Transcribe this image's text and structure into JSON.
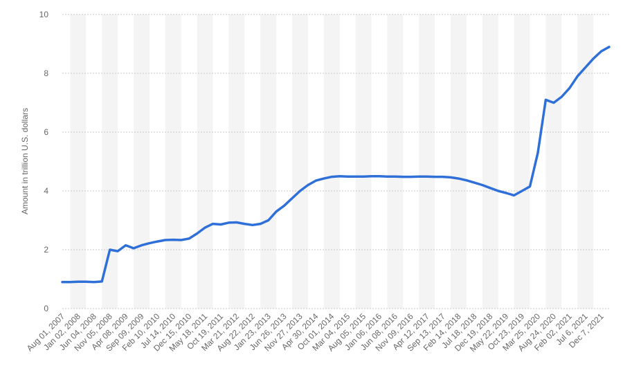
{
  "chart_data": {
    "type": "line",
    "y_axis_label": "Amount in trillion U.S. dollars",
    "categories": [
      "Aug 01, 2007",
      null,
      "Jan 02, 2008",
      null,
      "Jun 04, 2008",
      null,
      "Nov 05, 2008",
      null,
      "Apr 08, 2009",
      null,
      "Sep 09, 2009",
      null,
      "Feb 10, 2010",
      null,
      "Jul 14, 2010",
      null,
      "Dec 15, 2010",
      null,
      "May 18, 2011",
      null,
      "Oct 19, 2011",
      null,
      "Mar 21, 2012",
      null,
      "Aug 22, 2012",
      null,
      "Jan 23, 2013",
      null,
      "Jun 26, 2013",
      null,
      "Nov 27, 2013",
      null,
      "Apr 30, 2014",
      null,
      "Oct 01, 2014",
      null,
      "Mar 04, 2015",
      null,
      "Aug 05, 2015",
      null,
      "Jan 06, 2016",
      null,
      "Jun 08, 2016",
      null,
      "Nov 09, 2016",
      null,
      "Apr 12, 2017",
      null,
      "Sep 13, 2017",
      null,
      "Feb 14, 2018",
      null,
      "Jul 18, 2018",
      null,
      "Dec 19, 2018",
      null,
      "May 22, 2019",
      null,
      "Oct 23, 2019",
      null,
      "Mar 25, 2020",
      null,
      "Aug 24, 2020",
      null,
      "Feb 02, 2021",
      null,
      "Jul 6, 2021",
      null,
      "Dec 7, 2021",
      null
    ],
    "values": [
      0.9,
      0.9,
      0.91,
      0.91,
      0.9,
      0.92,
      2.0,
      1.95,
      2.15,
      2.05,
      2.15,
      2.22,
      2.28,
      2.33,
      2.34,
      2.33,
      2.38,
      2.55,
      2.75,
      2.88,
      2.86,
      2.92,
      2.93,
      2.88,
      2.84,
      2.88,
      3.0,
      3.3,
      3.5,
      3.75,
      4.0,
      4.2,
      4.35,
      4.42,
      4.48,
      4.5,
      4.49,
      4.49,
      4.49,
      4.5,
      4.5,
      4.49,
      4.49,
      4.48,
      4.48,
      4.49,
      4.49,
      4.48,
      4.48,
      4.46,
      4.42,
      4.36,
      4.28,
      4.2,
      4.1,
      4.0,
      3.93,
      3.85,
      4.0,
      4.15,
      5.3,
      7.1,
      7.0,
      7.2,
      7.5,
      7.9,
      8.2,
      8.5,
      8.75,
      8.9
    ],
    "color": "#2f6fd8",
    "ylim": [
      0,
      10
    ],
    "yticks": [
      0,
      2,
      4,
      6,
      8,
      10
    ],
    "grid": true
  }
}
